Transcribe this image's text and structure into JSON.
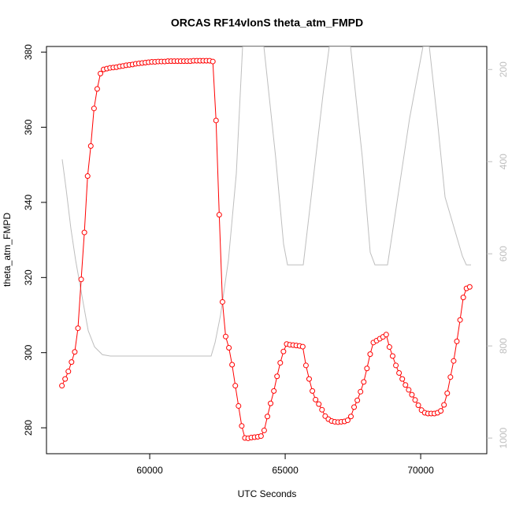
{
  "chart_data": {
    "type": "line",
    "title": "ORCAS RF14vlonS theta_atm_FMPD",
    "x_label": "UTC Seconds",
    "y_label": "theta_atm_FMPD",
    "xlim": [
      56190,
      72440
    ],
    "xticks": [
      60000,
      65000,
      70000
    ],
    "ylim": [
      273.1,
      381.5
    ],
    "yticks": [
      280,
      300,
      320,
      340,
      360,
      380
    ],
    "y2lim": [
      1034,
      150
    ],
    "y2ticks": [
      200,
      400,
      600,
      800,
      1000
    ],
    "series": [
      {
        "color": "#ff0000",
        "marker": "circle",
        "x": [
          56760,
          56878,
          56997,
          57115,
          57234,
          57352,
          57471,
          57589,
          57708,
          57826,
          57945,
          58063,
          58182,
          58300,
          58419,
          58537,
          58656,
          58774,
          58893,
          59011,
          59130,
          59248,
          59367,
          59485,
          59604,
          59722,
          59841,
          59959,
          60078,
          60196,
          60315,
          60433,
          60552,
          60670,
          60789,
          60907,
          61026,
          61144,
          61263,
          61381,
          61500,
          61618,
          61737,
          61855,
          61974,
          62092,
          62211,
          62329,
          62448,
          62566,
          62685,
          62803,
          62922,
          63040,
          63159,
          63277,
          63396,
          63514,
          63633,
          63751,
          63870,
          63988,
          64107,
          64225,
          64344,
          64462,
          64581,
          64699,
          64818,
          64936,
          65055,
          65173,
          65292,
          65410,
          65529,
          65647,
          65766,
          65884,
          66003,
          66121,
          66240,
          66358,
          66477,
          66595,
          66714,
          66832,
          66951,
          67069,
          67188,
          67306,
          67425,
          67543,
          67662,
          67780,
          67899,
          68017,
          68136,
          68254,
          68373,
          68491,
          68610,
          68728,
          68847,
          68965,
          69084,
          69202,
          69321,
          69439,
          69558,
          69676,
          69795,
          69913,
          70032,
          70150,
          70269,
          70387,
          70506,
          70624,
          70743,
          70861,
          70980,
          71098,
          71217,
          71335,
          71454,
          71572,
          71691,
          71809
        ],
        "values": [
          291.2,
          293,
          295,
          297.5,
          300.2,
          306.5,
          319.5,
          332,
          347,
          355,
          365,
          370.2,
          374.3,
          375.4,
          375.6,
          375.8,
          375.9,
          376.0,
          376.2,
          376.3,
          376.5,
          376.6,
          376.7,
          376.9,
          377.0,
          377.1,
          377.2,
          377.3,
          377.4,
          377.4,
          377.5,
          377.5,
          377.5,
          377.6,
          377.6,
          377.6,
          377.6,
          377.6,
          377.6,
          377.6,
          377.6,
          377.7,
          377.7,
          377.7,
          377.7,
          377.7,
          377.7,
          377.5,
          361.8,
          336.7,
          313.5,
          304.3,
          301.3,
          296.8,
          291.2,
          285.8,
          280.5,
          277.3,
          277.2,
          277.4,
          277.5,
          277.6,
          277.8,
          279.3,
          283,
          286.5,
          289.8,
          293.7,
          297.3,
          300.3,
          302.3,
          302.1,
          302,
          301.9,
          301.8,
          301.6,
          296.6,
          293,
          289.8,
          287.5,
          286.3,
          284.8,
          283.1,
          282.3,
          281.8,
          281.6,
          281.5,
          281.6,
          281.7,
          282,
          283,
          285.5,
          287.3,
          289.6,
          292.2,
          295.8,
          299.6,
          302.7,
          303.2,
          303.7,
          304.2,
          304.8,
          301.5,
          299.1,
          296.6,
          294.6,
          293,
          291.4,
          290.1,
          288.8,
          287.4,
          286,
          284.7,
          284,
          283.8,
          283.8,
          283.8,
          284,
          284.5,
          286.1,
          289.2,
          293.5,
          297.8,
          303,
          308.7,
          314.7,
          317.1,
          317.5
        ]
      },
      {
        "color": "#bebebe",
        "axis": "y2",
        "x": [
          56771,
          56916,
          57091,
          57266,
          57498,
          57731,
          57964,
          58254,
          58545,
          62266,
          62411,
          62614,
          62905,
          63196,
          63428,
          64213,
          64649,
          64940,
          65085,
          65667,
          65958,
          66394,
          66626,
          67411,
          67847,
          68138,
          68312,
          68777,
          69068,
          69591,
          70085,
          70318,
          70609,
          70900,
          71539,
          71684,
          71859
        ],
        "values": [
          395,
          460,
          545,
          614,
          691,
          767,
          802,
          819,
          822,
          822,
          793,
          733,
          614,
          426,
          150,
          150,
          391,
          579,
          624,
          624,
          477,
          255,
          150,
          150,
          391,
          597,
          624,
          624,
          511,
          306,
          150,
          150,
          306,
          477,
          605,
          624,
          624
        ]
      }
    ]
  }
}
